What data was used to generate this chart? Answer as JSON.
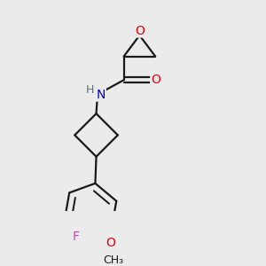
{
  "background_color": "#ebebeb",
  "bond_color": "#1a1a1a",
  "atom_colors": {
    "O": "#e8000d",
    "N": "#0000cc",
    "F": "#cc44bb",
    "C": "#1a1a1a",
    "H": "#607070"
  },
  "figsize": [
    3.0,
    3.0
  ],
  "dpi": 100,
  "bond_lw": 1.6,
  "font_size": 10
}
